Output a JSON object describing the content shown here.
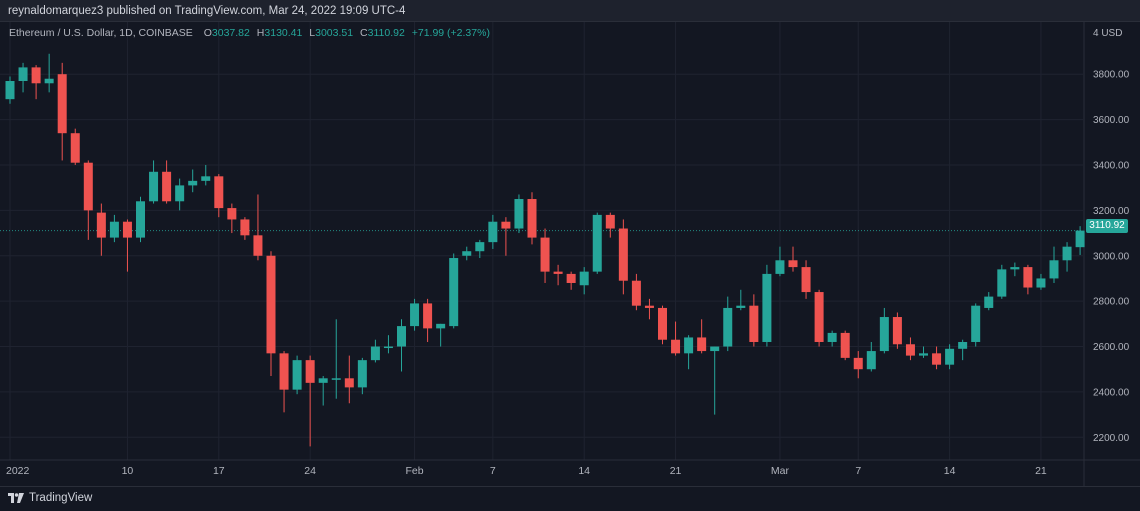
{
  "header": {
    "published_text": "reynaldomarquez3 published on TradingView.com, Mar 24, 2022 19:09 UTC-4"
  },
  "legend": {
    "symbol": "Ethereum / U.S. Dollar, 1D, COINBASE",
    "o_key": "O",
    "o_val": "3037.82",
    "h_key": "H",
    "h_val": "3130.41",
    "l_key": "L",
    "l_val": "3003.51",
    "c_key": "C",
    "c_val": "3110.92",
    "change": "+71.99 (+2.37%)"
  },
  "price_tag": "3110.92",
  "footer": {
    "brand": "TradingView"
  },
  "colors": {
    "up": "#26a69a",
    "down": "#ef5350",
    "background": "#131722",
    "grid": "#1f2330"
  },
  "chart_data": {
    "type": "candlestick",
    "currency_label": "USD",
    "scale_label": "4 USD",
    "ylim": [
      2100,
      4030
    ],
    "y_ticks": [
      "3800.00",
      "3600.00",
      "3400.00",
      "3200.00",
      "3000.00",
      "2800.00",
      "2600.00",
      "2400.00",
      "2200.00"
    ],
    "y_tick_values": [
      3800,
      3600,
      3400,
      3200,
      3000,
      2800,
      2600,
      2400,
      2200
    ],
    "x_ticks": [
      {
        "label": "2022",
        "index": 0
      },
      {
        "label": "10",
        "index": 9
      },
      {
        "label": "17",
        "index": 16
      },
      {
        "label": "24",
        "index": 23
      },
      {
        "label": "Feb",
        "index": 31
      },
      {
        "label": "7",
        "index": 37
      },
      {
        "label": "14",
        "index": 44
      },
      {
        "label": "21",
        "index": 51
      },
      {
        "label": "Mar",
        "index": 59
      },
      {
        "label": "7",
        "index": 65
      },
      {
        "label": "14",
        "index": 72
      },
      {
        "label": "21",
        "index": 79
      }
    ],
    "last_close": 3110.92,
    "candles": [
      {
        "date": "Jan 1",
        "o": 3690,
        "h": 3790,
        "l": 3670,
        "c": 3770
      },
      {
        "date": "Jan 2",
        "o": 3770,
        "h": 3850,
        "l": 3720,
        "c": 3830
      },
      {
        "date": "Jan 3",
        "o": 3830,
        "h": 3840,
        "l": 3690,
        "c": 3760
      },
      {
        "date": "Jan 4",
        "o": 3760,
        "h": 3890,
        "l": 3720,
        "c": 3780
      },
      {
        "date": "Jan 5",
        "o": 3800,
        "h": 3850,
        "l": 3420,
        "c": 3540
      },
      {
        "date": "Jan 6",
        "o": 3540,
        "h": 3560,
        "l": 3400,
        "c": 3410
      },
      {
        "date": "Jan 7",
        "o": 3410,
        "h": 3420,
        "l": 3070,
        "c": 3200
      },
      {
        "date": "Jan 8",
        "o": 3190,
        "h": 3230,
        "l": 3000,
        "c": 3080
      },
      {
        "date": "Jan 9",
        "o": 3080,
        "h": 3180,
        "l": 3060,
        "c": 3150
      },
      {
        "date": "Jan 10",
        "o": 3150,
        "h": 3160,
        "l": 2930,
        "c": 3080
      },
      {
        "date": "Jan 11",
        "o": 3080,
        "h": 3260,
        "l": 3060,
        "c": 3240
      },
      {
        "date": "Jan 12",
        "o": 3240,
        "h": 3420,
        "l": 3230,
        "c": 3370
      },
      {
        "date": "Jan 13",
        "o": 3370,
        "h": 3420,
        "l": 3230,
        "c": 3240
      },
      {
        "date": "Jan 14",
        "o": 3240,
        "h": 3340,
        "l": 3200,
        "c": 3310
      },
      {
        "date": "Jan 15",
        "o": 3310,
        "h": 3380,
        "l": 3280,
        "c": 3330
      },
      {
        "date": "Jan 16",
        "o": 3330,
        "h": 3400,
        "l": 3310,
        "c": 3350
      },
      {
        "date": "Jan 17",
        "o": 3350,
        "h": 3360,
        "l": 3170,
        "c": 3210
      },
      {
        "date": "Jan 18",
        "o": 3210,
        "h": 3230,
        "l": 3100,
        "c": 3160
      },
      {
        "date": "Jan 19",
        "o": 3160,
        "h": 3170,
        "l": 3070,
        "c": 3090
      },
      {
        "date": "Jan 20",
        "o": 3090,
        "h": 3270,
        "l": 2980,
        "c": 3000
      },
      {
        "date": "Jan 21",
        "o": 3000,
        "h": 3020,
        "l": 2470,
        "c": 2570
      },
      {
        "date": "Jan 22",
        "o": 2570,
        "h": 2580,
        "l": 2310,
        "c": 2410
      },
      {
        "date": "Jan 23",
        "o": 2410,
        "h": 2560,
        "l": 2390,
        "c": 2540
      },
      {
        "date": "Jan 24",
        "o": 2540,
        "h": 2560,
        "l": 2160,
        "c": 2440
      },
      {
        "date": "Jan 25",
        "o": 2440,
        "h": 2470,
        "l": 2340,
        "c": 2460
      },
      {
        "date": "Jan 26",
        "o": 2460,
        "h": 2720,
        "l": 2370,
        "c": 2460
      },
      {
        "date": "Jan 27",
        "o": 2460,
        "h": 2560,
        "l": 2350,
        "c": 2420
      },
      {
        "date": "Jan 28",
        "o": 2420,
        "h": 2550,
        "l": 2390,
        "c": 2540
      },
      {
        "date": "Jan 29",
        "o": 2540,
        "h": 2630,
        "l": 2530,
        "c": 2600
      },
      {
        "date": "Jan 30",
        "o": 2600,
        "h": 2650,
        "l": 2570,
        "c": 2600
      },
      {
        "date": "Jan 31",
        "o": 2600,
        "h": 2720,
        "l": 2490,
        "c": 2690
      },
      {
        "date": "Feb 1",
        "o": 2690,
        "h": 2810,
        "l": 2670,
        "c": 2790
      },
      {
        "date": "Feb 2",
        "o": 2790,
        "h": 2810,
        "l": 2620,
        "c": 2680
      },
      {
        "date": "Feb 3",
        "o": 2680,
        "h": 2700,
        "l": 2600,
        "c": 2700
      },
      {
        "date": "Feb 4",
        "o": 2690,
        "h": 3010,
        "l": 2680,
        "c": 2990
      },
      {
        "date": "Feb 5",
        "o": 3000,
        "h": 3040,
        "l": 2980,
        "c": 3020
      },
      {
        "date": "Feb 6",
        "o": 3020,
        "h": 3070,
        "l": 2990,
        "c": 3060
      },
      {
        "date": "Feb 7",
        "o": 3060,
        "h": 3180,
        "l": 3030,
        "c": 3150
      },
      {
        "date": "Feb 8",
        "o": 3150,
        "h": 3170,
        "l": 3000,
        "c": 3120
      },
      {
        "date": "Feb 9",
        "o": 3120,
        "h": 3270,
        "l": 3100,
        "c": 3250
      },
      {
        "date": "Feb 10",
        "o": 3250,
        "h": 3280,
        "l": 3050,
        "c": 3080
      },
      {
        "date": "Feb 11",
        "o": 3080,
        "h": 3120,
        "l": 2880,
        "c": 2930
      },
      {
        "date": "Feb 12",
        "o": 2930,
        "h": 2960,
        "l": 2870,
        "c": 2920
      },
      {
        "date": "Feb 13",
        "o": 2920,
        "h": 2930,
        "l": 2850,
        "c": 2880
      },
      {
        "date": "Feb 14",
        "o": 2870,
        "h": 2950,
        "l": 2830,
        "c": 2930
      },
      {
        "date": "Feb 15",
        "o": 2930,
        "h": 3190,
        "l": 2920,
        "c": 3180
      },
      {
        "date": "Feb 16",
        "o": 3180,
        "h": 3190,
        "l": 3080,
        "c": 3120
      },
      {
        "date": "Feb 17",
        "o": 3120,
        "h": 3160,
        "l": 2830,
        "c": 2890
      },
      {
        "date": "Feb 18",
        "o": 2890,
        "h": 2920,
        "l": 2760,
        "c": 2780
      },
      {
        "date": "Feb 19",
        "o": 2780,
        "h": 2810,
        "l": 2720,
        "c": 2770
      },
      {
        "date": "Feb 20",
        "o": 2770,
        "h": 2780,
        "l": 2610,
        "c": 2630
      },
      {
        "date": "Feb 21",
        "o": 2630,
        "h": 2710,
        "l": 2560,
        "c": 2570
      },
      {
        "date": "Feb 22",
        "o": 2570,
        "h": 2650,
        "l": 2500,
        "c": 2640
      },
      {
        "date": "Feb 23",
        "o": 2640,
        "h": 2720,
        "l": 2570,
        "c": 2580
      },
      {
        "date": "Feb 24",
        "o": 2580,
        "h": 2600,
        "l": 2300,
        "c": 2600
      },
      {
        "date": "Feb 25",
        "o": 2600,
        "h": 2820,
        "l": 2580,
        "c": 2770
      },
      {
        "date": "Feb 26",
        "o": 2770,
        "h": 2850,
        "l": 2760,
        "c": 2780
      },
      {
        "date": "Feb 27",
        "o": 2780,
        "h": 2830,
        "l": 2600,
        "c": 2620
      },
      {
        "date": "Feb 28",
        "o": 2620,
        "h": 2960,
        "l": 2600,
        "c": 2920
      },
      {
        "date": "Mar 1",
        "o": 2920,
        "h": 3040,
        "l": 2910,
        "c": 2980
      },
      {
        "date": "Mar 2",
        "o": 2980,
        "h": 3040,
        "l": 2930,
        "c": 2950
      },
      {
        "date": "Mar 3",
        "o": 2950,
        "h": 2980,
        "l": 2810,
        "c": 2840
      },
      {
        "date": "Mar 4",
        "o": 2840,
        "h": 2850,
        "l": 2600,
        "c": 2620
      },
      {
        "date": "Mar 5",
        "o": 2620,
        "h": 2670,
        "l": 2600,
        "c": 2660
      },
      {
        "date": "Mar 6",
        "o": 2660,
        "h": 2670,
        "l": 2540,
        "c": 2550
      },
      {
        "date": "Mar 7",
        "o": 2550,
        "h": 2580,
        "l": 2460,
        "c": 2500
      },
      {
        "date": "Mar 8",
        "o": 2500,
        "h": 2620,
        "l": 2490,
        "c": 2580
      },
      {
        "date": "Mar 9",
        "o": 2580,
        "h": 2770,
        "l": 2570,
        "c": 2730
      },
      {
        "date": "Mar 10",
        "o": 2730,
        "h": 2750,
        "l": 2590,
        "c": 2610
      },
      {
        "date": "Mar 11",
        "o": 2610,
        "h": 2640,
        "l": 2540,
        "c": 2560
      },
      {
        "date": "Mar 12",
        "o": 2560,
        "h": 2600,
        "l": 2550,
        "c": 2570
      },
      {
        "date": "Mar 13",
        "o": 2570,
        "h": 2600,
        "l": 2500,
        "c": 2520
      },
      {
        "date": "Mar 14",
        "o": 2520,
        "h": 2610,
        "l": 2500,
        "c": 2590
      },
      {
        "date": "Mar 15",
        "o": 2590,
        "h": 2630,
        "l": 2540,
        "c": 2620
      },
      {
        "date": "Mar 16",
        "o": 2620,
        "h": 2790,
        "l": 2600,
        "c": 2780
      },
      {
        "date": "Mar 17",
        "o": 2770,
        "h": 2840,
        "l": 2760,
        "c": 2820
      },
      {
        "date": "Mar 18",
        "o": 2820,
        "h": 2960,
        "l": 2810,
        "c": 2940
      },
      {
        "date": "Mar 19",
        "o": 2940,
        "h": 2970,
        "l": 2910,
        "c": 2950
      },
      {
        "date": "Mar 20",
        "o": 2950,
        "h": 2960,
        "l": 2830,
        "c": 2860
      },
      {
        "date": "Mar 21",
        "o": 2860,
        "h": 2920,
        "l": 2850,
        "c": 2900
      },
      {
        "date": "Mar 22",
        "o": 2900,
        "h": 3040,
        "l": 2880,
        "c": 2980
      },
      {
        "date": "Mar 23",
        "o": 2980,
        "h": 3060,
        "l": 2930,
        "c": 3040
      },
      {
        "date": "Mar 24",
        "o": 3037.82,
        "h": 3130.41,
        "l": 3003.51,
        "c": 3110.92
      }
    ]
  }
}
